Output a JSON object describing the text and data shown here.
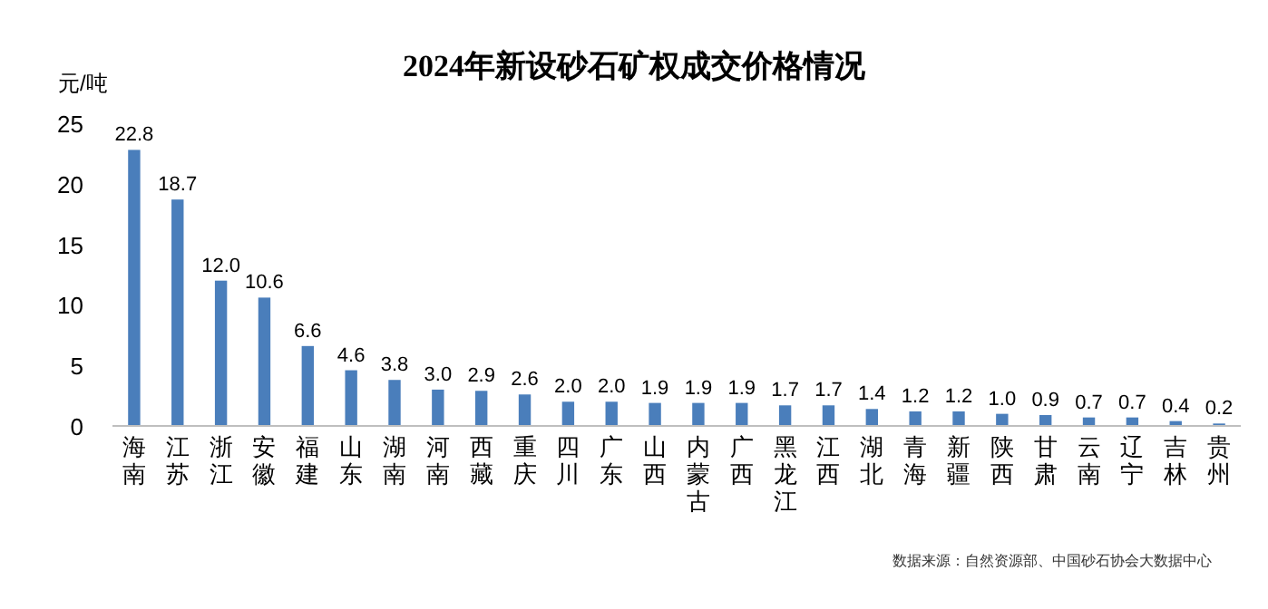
{
  "chart_data": {
    "type": "bar",
    "title": "2024年新设砂石矿权成交价格情况",
    "ylabel": "元/吨",
    "categories": [
      "海南",
      "江苏",
      "浙江",
      "安徽",
      "福建",
      "山东",
      "湖南",
      "河南",
      "西藏",
      "重庆",
      "四川",
      "广东",
      "山西",
      "内蒙古",
      "广西",
      "黑龙江",
      "江西",
      "湖北",
      "青海",
      "新疆",
      "陕西",
      "甘肃",
      "云南",
      "辽宁",
      "吉林",
      "贵州"
    ],
    "values": [
      22.8,
      18.7,
      12.0,
      10.6,
      6.6,
      4.6,
      3.8,
      3.0,
      2.9,
      2.6,
      2.0,
      2.0,
      1.9,
      1.9,
      1.9,
      1.7,
      1.7,
      1.4,
      1.2,
      1.2,
      1.0,
      0.9,
      0.7,
      0.7,
      0.4,
      0.2
    ],
    "value_labels": [
      "22.8",
      "18.7",
      "12.0",
      "10.6",
      "6.6",
      "4.6",
      "3.8",
      "3.0",
      "2.9",
      "2.6",
      "2.0",
      "2.0",
      "1.9",
      "1.9",
      "1.9",
      "1.7",
      "1.7",
      "1.4",
      "1.2",
      "1.2",
      "1.0",
      "0.9",
      "0.7",
      "0.7",
      "0.4",
      "0.2"
    ],
    "color": "#4a7ebb",
    "ylim": [
      0,
      25
    ],
    "yticks": [
      0,
      5,
      10,
      15,
      20,
      25
    ],
    "grid": false,
    "annotations": [
      "数据来源：自然资源部、中国砂石协会大数据中心"
    ]
  }
}
